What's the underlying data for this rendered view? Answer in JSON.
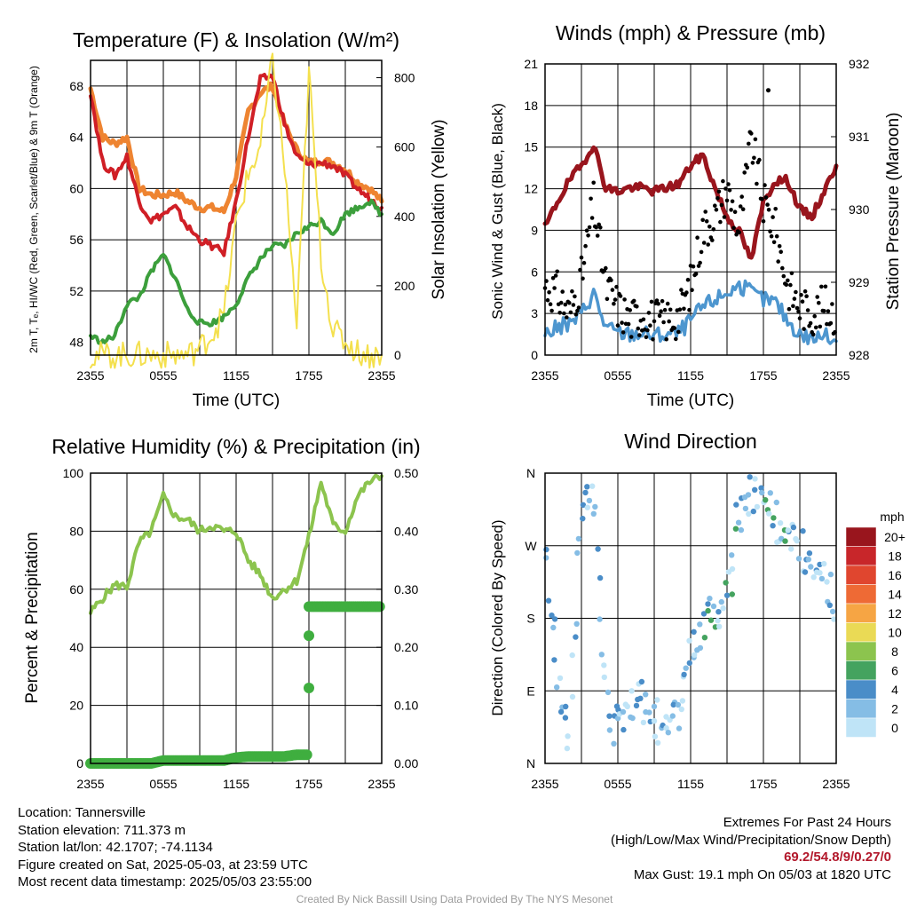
{
  "panels": {
    "temp": {
      "title": "Temperature (F) & Insolation (W/m²)",
      "ylabel_left": "2m T, Tₑ, HI/WC (Red, Green, Scarlet/Blue) & 9m T (Orange)",
      "ylabel_right": "Solar Insolation (Yellow)",
      "xlabel": "Time (UTC)"
    },
    "wind": {
      "title": "Winds (mph) & Pressure (mb)",
      "ylabel_left": "Sonic Wind & Gust (Blue, Black)",
      "ylabel_right": "Station Pressure (Maroon)",
      "xlabel": "Time (UTC)"
    },
    "rh": {
      "title": "Relative Humidity (%) & Precipitation (in)",
      "ylabel_left": "Percent & Precipitation"
    },
    "dir": {
      "title": "Wind Direction",
      "ylabel_left": "Direction (Colored By Speed)",
      "legend_title": "mph",
      "legend_labels": [
        "20+",
        "18",
        "16",
        "14",
        "12",
        "10",
        "8",
        "6",
        "4",
        "2",
        "0"
      ],
      "legend_colors": [
        "#99151d",
        "#c8262a",
        "#e0462f",
        "#ee6a35",
        "#f6a544",
        "#eada55",
        "#8cc44e",
        "#44a35f",
        "#4a8dc8",
        "#85bde5",
        "#bfe4f7"
      ]
    }
  },
  "chart_data": [
    {
      "type": "line",
      "title": "Temperature (F) & Insolation (W/m²)",
      "xlabel": "Time (UTC)",
      "x_ticks": [
        "2355",
        "0555",
        "1155",
        "1755",
        "2355"
      ],
      "ylim": [
        47,
        70
      ],
      "y_ticks": [
        48,
        52,
        56,
        60,
        64,
        68
      ],
      "ylim_right": [
        0,
        850
      ],
      "y_ticks_right": [
        0,
        200,
        400,
        600,
        800
      ],
      "x": [
        0,
        1,
        2,
        3,
        4,
        5,
        6,
        7,
        8,
        9,
        10,
        11,
        12,
        13,
        14,
        15,
        16,
        17,
        18,
        19,
        20,
        21,
        22,
        23,
        24
      ],
      "series": [
        {
          "color": "#ee8431",
          "axis": "left",
          "values": [
            67.8,
            64,
            63.5,
            64,
            60,
            59.5,
            59.5,
            59.7,
            59,
            58.5,
            58.5,
            58.2,
            61,
            66,
            67.5,
            68,
            65,
            63,
            62,
            62.2,
            62,
            61.5,
            60.5,
            60,
            59
          ]
        },
        {
          "color": "#d01f26",
          "axis": "left",
          "values": [
            67.5,
            62,
            61,
            62.5,
            59,
            57.5,
            58,
            58.5,
            57,
            56,
            55.5,
            55,
            59,
            64,
            68.5,
            68.8,
            65,
            62.5,
            61.8,
            62,
            61.8,
            61,
            60,
            59.2,
            58.5
          ]
        },
        {
          "color": "#3c9f3c",
          "axis": "left",
          "values": [
            48.5,
            48,
            48.5,
            51,
            51.5,
            53.5,
            54.8,
            53,
            50.5,
            49.5,
            49.5,
            50,
            51,
            53,
            54.5,
            55.5,
            55.5,
            56.5,
            57,
            57.5,
            56.5,
            58,
            58.5,
            59,
            58
          ]
        },
        {
          "color": "#f4e04e",
          "axis": "right",
          "values": [
            0,
            0,
            0,
            0,
            0,
            0,
            0,
            0,
            0,
            20,
            60,
            120,
            380,
            520,
            600,
            850,
            540,
            80,
            820,
            280,
            70,
            40,
            10,
            0,
            0
          ]
        }
      ]
    },
    {
      "type": "line",
      "title": "Winds (mph) & Pressure (mb)",
      "xlabel": "Time (UTC)",
      "x_ticks": [
        "2355",
        "0555",
        "1155",
        "1755",
        "2355"
      ],
      "ylim": [
        0,
        21
      ],
      "y_ticks": [
        0,
        3,
        6,
        9,
        12,
        15,
        18,
        21
      ],
      "ylim_right": [
        928,
        932
      ],
      "y_ticks_right": [
        928,
        929,
        930,
        931,
        932
      ],
      "x": [
        0,
        1,
        2,
        3,
        4,
        5,
        6,
        7,
        8,
        9,
        10,
        11,
        12,
        13,
        14,
        15,
        16,
        17,
        18,
        19,
        20,
        21,
        22,
        23,
        24
      ],
      "series": [
        {
          "color": "#99151d",
          "axis": "right",
          "values": [
            929.75,
            930.1,
            930.4,
            930.6,
            930.9,
            930.3,
            930.25,
            930.3,
            930.3,
            930.25,
            930.3,
            930.35,
            930.6,
            930.75,
            930.3,
            929.9,
            929.7,
            929.3,
            930.1,
            930.4,
            930.4,
            930.0,
            929.9,
            930.25,
            930.6
          ]
        },
        {
          "color": "#4d96cf",
          "axis": "left",
          "values": [
            1.5,
            2,
            2.2,
            3,
            4.5,
            2,
            1.6,
            1.5,
            1.6,
            1.4,
            1.5,
            1.6,
            2.5,
            3.5,
            4,
            4.5,
            5,
            4.5,
            4,
            3.8,
            2.5,
            1.5,
            1.2,
            1.4,
            1
          ]
        },
        {
          "color": "#000000",
          "axis": "left",
          "markers": "dots",
          "values": [
            5,
            4.5,
            3,
            5.5,
            11,
            5,
            3.5,
            2.5,
            3,
            2.5,
            2.5,
            2.8,
            5,
            9,
            10,
            12,
            9,
            15.5,
            11,
            9,
            5,
            3.5,
            3,
            3.5,
            3
          ]
        }
      ],
      "max_gust": 19.1
    },
    {
      "type": "line",
      "title": "Relative Humidity (%) & Precipitation (in)",
      "x_ticks": [
        "2355",
        "0555",
        "1155",
        "1755",
        "2355"
      ],
      "ylim": [
        0,
        100
      ],
      "y_ticks": [
        0,
        20,
        40,
        60,
        80,
        100
      ],
      "ylim_right": [
        0,
        0.5
      ],
      "y_ticks_right": [
        "0.00",
        "0.10",
        "0.20",
        "0.30",
        "0.40",
        "0.50"
      ],
      "x": [
        0,
        1,
        2,
        3,
        4,
        5,
        6,
        7,
        8,
        9,
        10,
        11,
        12,
        13,
        14,
        15,
        16,
        17,
        18,
        19,
        20,
        21,
        22,
        23,
        24
      ],
      "series": [
        {
          "color": "#8cc44e",
          "axis": "left",
          "values": [
            52,
            57,
            61.5,
            61,
            76,
            80,
            92,
            85,
            84,
            80,
            82,
            80,
            80,
            70,
            65,
            57,
            60,
            63,
            78,
            97,
            82,
            80,
            92,
            97,
            99
          ]
        },
        {
          "color": "#3fae3f",
          "axis": "right",
          "values": [
            0,
            0,
            0,
            0,
            0,
            0,
            0.005,
            0.005,
            0.005,
            0.005,
            0.005,
            0.005,
            0.01,
            0.012,
            0.012,
            0.012,
            0.012,
            0.015,
            0.27,
            0.27,
            0.27,
            0.27,
            0.27,
            0.27,
            0.27
          ]
        }
      ]
    },
    {
      "type": "scatter",
      "title": "Wind Direction",
      "x_ticks": [
        "2355",
        "0555",
        "1155",
        "1755",
        "2355"
      ],
      "y_ticks": [
        "N",
        "E",
        "S",
        "W",
        "N"
      ],
      "ylim": [
        0,
        360
      ],
      "x": [
        0,
        1,
        2,
        3,
        4,
        5,
        6,
        7,
        8,
        9,
        10,
        11,
        12,
        13,
        14,
        15,
        16,
        17,
        18,
        19,
        20,
        21,
        22,
        23,
        24
      ],
      "series": [
        {
          "values": [
            250,
            120,
            30,
            315,
            330,
            80,
            40,
            60,
            80,
            60,
            30,
            70,
            140,
            170,
            190,
            200,
            310,
            330,
            320,
            300,
            300,
            270,
            230,
            230,
            200
          ]
        }
      ]
    }
  ],
  "info": {
    "location": "Location: Tannersville",
    "elevation": "Station elevation: 711.373 m",
    "latlon": "Station lat/lon: 42.1707; -74.1134",
    "created": "Figure created on Sat, 2025-05-03, at 23:59 UTC",
    "recent": "Most recent data timestamp: 2025/05/03 23:55:00",
    "extremes_title": "Extremes For Past 24 Hours",
    "extremes_sub": "(High/Low/Max Wind/Precipitation/Snow Depth)",
    "extremes_values": "69.2/54.8/9/0.27/0",
    "max_gust": "Max Gust: 19.1 mph On 05/03 at 1820 UTC",
    "credit": "Created By Nick Bassill Using Data Provided By The NYS Mesonet"
  }
}
